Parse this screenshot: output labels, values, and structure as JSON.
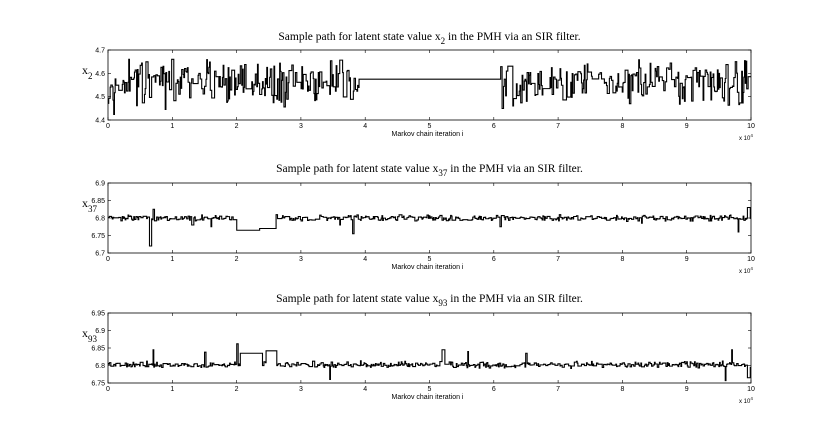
{
  "chart_data": [
    {
      "type": "line",
      "title": "Sample path for latent state value x_2 in the PMH via an SIR filter.",
      "title_parts": {
        "pre": "Sample path for latent state value x",
        "sub": "2",
        "post": " in the PMH via an SIR filter."
      },
      "ylabel": "x_2",
      "ylabel_parts": {
        "base": "x",
        "sub": "2"
      },
      "xlabel": "Markov chain iteration i",
      "x_multiplier": "x 10^4",
      "x_ticks": [
        "0",
        "1",
        "2",
        "3",
        "4",
        "5",
        "6",
        "7",
        "8",
        "9",
        "10"
      ],
      "y_ticks": [
        "4.4",
        "4.5",
        "4.6",
        "4.7"
      ],
      "xlim": [
        0,
        10
      ],
      "ylim": [
        4.4,
        4.7
      ],
      "series_style": {
        "baseline": 4.555,
        "spread": 0.045,
        "min": 4.42,
        "max": 4.66,
        "spikes": [],
        "flats": [
          [
            3.9,
            6.1,
            4.575
          ]
        ]
      }
    },
    {
      "type": "line",
      "title": "Sample path for latent state value x_37 in the PMH via an SIR filter.",
      "title_parts": {
        "pre": "Sample path for latent state value x",
        "sub": "37",
        "post": " in the PMH via an SIR filter."
      },
      "ylabel": "x_37",
      "ylabel_parts": {
        "base": "x",
        "sub": "37"
      },
      "xlabel": "Markov chain iteration i",
      "x_multiplier": "x 10^4",
      "x_ticks": [
        "0",
        "1",
        "2",
        "3",
        "4",
        "5",
        "6",
        "7",
        "8",
        "9",
        "10"
      ],
      "y_ticks": [
        "6.7",
        "6.75",
        "6.8",
        "6.85",
        "6.9"
      ],
      "xlim": [
        0,
        10
      ],
      "ylim": [
        6.7,
        6.9
      ],
      "series_style": {
        "baseline": 6.8,
        "spread": 0.004,
        "min": 6.71,
        "max": 6.84,
        "spikes": [
          [
            0.65,
            6.72
          ],
          [
            0.7,
            6.825
          ],
          [
            1.3,
            6.78
          ],
          [
            1.6,
            6.775
          ],
          [
            3.8,
            6.755
          ],
          [
            3.6,
            6.78
          ],
          [
            6.1,
            6.775
          ],
          [
            9.8,
            6.76
          ],
          [
            8.3,
            6.785
          ],
          [
            9.95,
            6.83
          ]
        ],
        "flats": [
          [
            2.0,
            2.35,
            6.765
          ],
          [
            2.35,
            2.6,
            6.77
          ]
        ]
      }
    },
    {
      "type": "line",
      "title": "Sample path for latent state value x_93 in the PMH via an SIR filter.",
      "title_parts": {
        "pre": "Sample path for latent state value x",
        "sub": "93",
        "post": " in the PMH via an SIR filter."
      },
      "ylabel": "x_93",
      "ylabel_parts": {
        "base": "x",
        "sub": "93"
      },
      "xlabel": "Markov chain iteration i",
      "x_multiplier": "x 10^4",
      "x_ticks": [
        "0",
        "1",
        "2",
        "3",
        "4",
        "5",
        "6",
        "7",
        "8",
        "9",
        "10"
      ],
      "y_ticks": [
        "6.75",
        "6.8",
        "6.85",
        "6.9",
        "6.95"
      ],
      "xlim": [
        0,
        10
      ],
      "ylim": [
        6.75,
        6.95
      ],
      "series_style": {
        "baseline": 6.802,
        "spread": 0.004,
        "min": 6.755,
        "max": 6.87,
        "spikes": [
          [
            0.7,
            6.845
          ],
          [
            1.5,
            6.838
          ],
          [
            2.0,
            6.862
          ],
          [
            3.45,
            6.76
          ],
          [
            5.2,
            6.845
          ],
          [
            5.6,
            6.84
          ],
          [
            6.5,
            6.835
          ],
          [
            9.6,
            6.757
          ],
          [
            9.7,
            6.845
          ],
          [
            9.95,
            6.765
          ]
        ],
        "flats": [
          [
            2.05,
            2.4,
            6.835
          ],
          [
            2.45,
            2.6,
            6.842
          ]
        ]
      }
    }
  ]
}
